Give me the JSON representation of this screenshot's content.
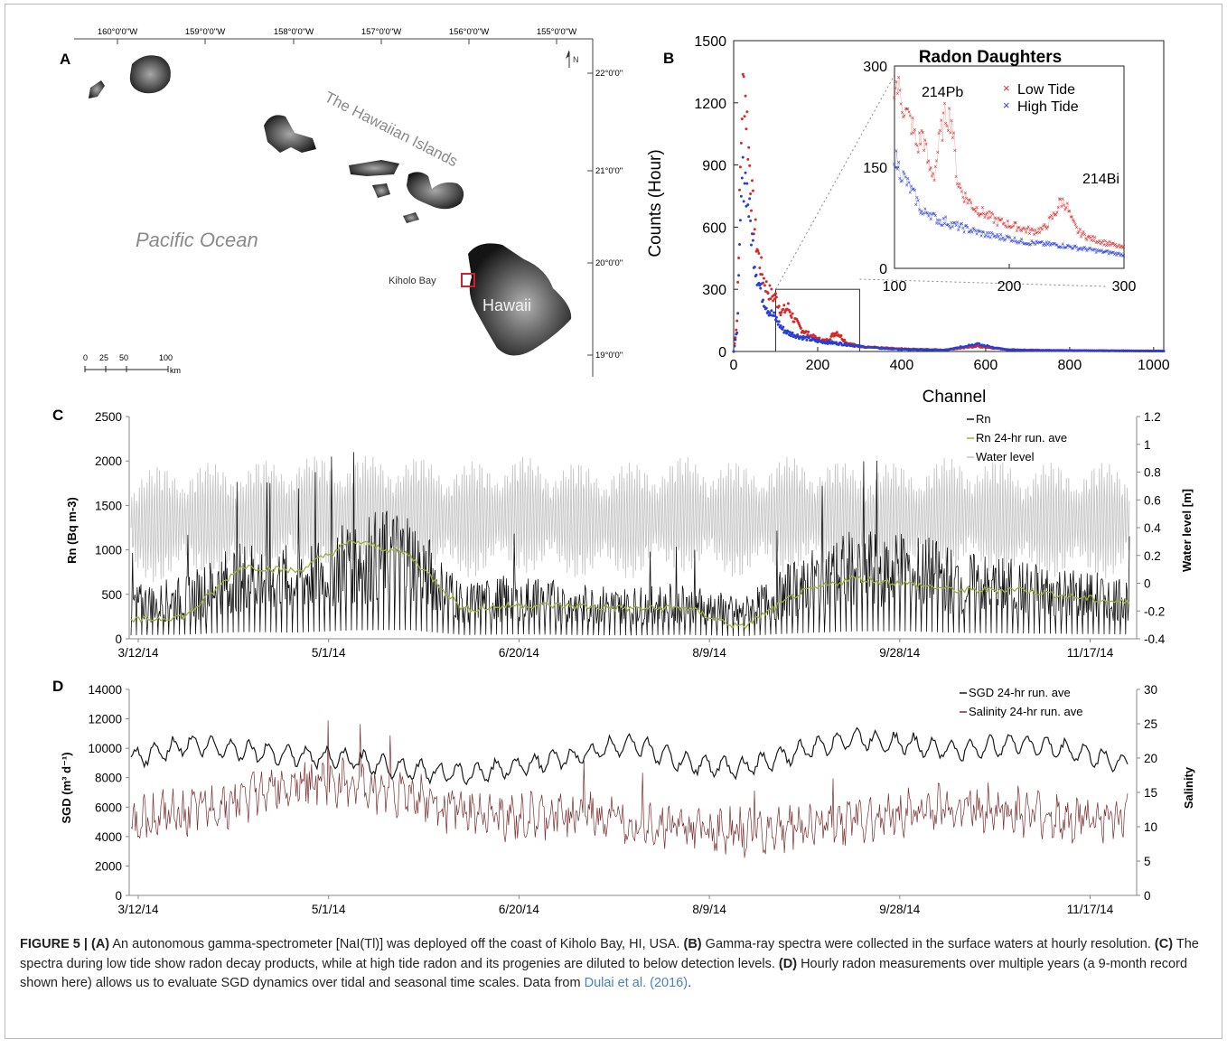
{
  "panel_a": {
    "letter": "A",
    "lon_ticks": [
      "160°0'0\"W",
      "159°0'0\"W",
      "158°0'0\"W",
      "157°0'0\"W",
      "156°0'0\"W",
      "155°0'0\"W"
    ],
    "lat_ticks": [
      "22°0'0\"N",
      "21°0'0\"N",
      "20°0'0\"N",
      "19°0'0\"N"
    ],
    "islands_label": "The Hawaiian Islands",
    "ocean_label": "Pacific Ocean",
    "bay_label": "Kiholo Bay",
    "big_island_label": "Hawaii",
    "north_label": "N",
    "scale_ticks": [
      "0",
      "25",
      "50",
      "100"
    ],
    "scale_unit": "km",
    "colors": {
      "land_dark": "#1c1c1c",
      "land_light": "#9a9a9a",
      "ocean_label": "#8a8a8a",
      "site_box": "#d0202a"
    }
  },
  "chart_data": [
    {
      "panel": "B",
      "type": "scatter",
      "ylabel": "Counts (Hour)",
      "xlabel": "Channel",
      "xlim": [
        0,
        1024
      ],
      "ylim": [
        0,
        1500
      ],
      "x_ticks": [
        "0",
        "200",
        "400",
        "600",
        "800",
        "1000"
      ],
      "y_ticks": [
        "0",
        "300",
        "600",
        "900",
        "1200",
        "1500"
      ],
      "zoom_box": {
        "x": [
          100,
          300
        ],
        "y": [
          0,
          300
        ]
      },
      "series": [
        {
          "name": "Low Tide",
          "color": "#d42a2a",
          "marker": "x",
          "x": [
            0,
            8,
            14,
            20,
            26,
            32,
            38,
            45,
            52,
            60,
            70,
            80,
            90,
            100,
            115,
            130,
            145,
            160,
            180,
            200,
            220,
            245,
            270,
            300,
            350,
            400,
            450,
            500,
            560,
            580,
            650,
            700,
            800,
            900,
            1000,
            1024
          ],
          "y": [
            0,
            150,
            700,
            1200,
            1300,
            1100,
            900,
            700,
            560,
            450,
            360,
            300,
            270,
            260,
            190,
            210,
            150,
            110,
            80,
            60,
            50,
            95,
            40,
            25,
            18,
            12,
            10,
            8,
            20,
            25,
            10,
            7,
            5,
            4,
            3,
            3
          ]
        },
        {
          "name": "High Tide",
          "color": "#2a3ed4",
          "marker": "x",
          "x": [
            0,
            8,
            14,
            20,
            26,
            32,
            38,
            45,
            52,
            60,
            70,
            80,
            90,
            100,
            115,
            130,
            145,
            160,
            180,
            200,
            220,
            245,
            270,
            300,
            350,
            400,
            450,
            500,
            560,
            580,
            650,
            700,
            800,
            900,
            1000,
            1024
          ],
          "y": [
            0,
            100,
            450,
            820,
            860,
            780,
            650,
            520,
            410,
            330,
            260,
            210,
            180,
            160,
            110,
            90,
            80,
            70,
            60,
            50,
            45,
            40,
            33,
            25,
            15,
            10,
            8,
            6,
            30,
            35,
            8,
            5,
            4,
            3,
            2,
            2
          ]
        }
      ],
      "inset": {
        "title": "Radon Daughters",
        "xlim": [
          100,
          300
        ],
        "ylim": [
          0,
          300
        ],
        "x_ticks": [
          "100",
          "200",
          "300"
        ],
        "y_ticks": [
          "0",
          "150",
          "300"
        ],
        "annotations": [
          "214Pb",
          "214Bi"
        ],
        "low_tide": {
          "x": [
            100,
            105,
            110,
            115,
            120,
            125,
            130,
            135,
            140,
            145,
            150,
            155,
            160,
            170,
            180,
            190,
            200,
            210,
            220,
            230,
            240,
            245,
            250,
            255,
            260,
            270,
            280,
            290,
            300
          ],
          "y": [
            280,
            260,
            230,
            215,
            180,
            200,
            150,
            140,
            195,
            230,
            220,
            130,
            110,
            90,
            80,
            70,
            65,
            60,
            55,
            58,
            80,
            100,
            95,
            70,
            55,
            45,
            40,
            35,
            30
          ]
        },
        "high_tide": {
          "x": [
            100,
            105,
            110,
            115,
            120,
            125,
            130,
            135,
            140,
            145,
            150,
            160,
            170,
            180,
            190,
            200,
            210,
            220,
            230,
            240,
            250,
            260,
            270,
            280,
            290,
            300
          ],
          "y": [
            170,
            145,
            130,
            115,
            100,
            80,
            85,
            75,
            70,
            70,
            65,
            60,
            55,
            50,
            47,
            45,
            40,
            38,
            36,
            35,
            33,
            30,
            28,
            25,
            23,
            20
          ]
        }
      }
    },
    {
      "panel": "C",
      "type": "line",
      "ylabel": "Rn (Bq m-3)",
      "y2label": "Water level [m]",
      "ylim": [
        0,
        2500
      ],
      "y2lim": [
        -0.4,
        1.2
      ],
      "x_ticks": [
        "3/12/14",
        "5/1/14",
        "6/20/14",
        "8/9/14",
        "9/28/14",
        "11/17/14"
      ],
      "y_ticks": [
        "0",
        "500",
        "1000",
        "1500",
        "2000",
        "2500"
      ],
      "y2_ticks": [
        "-0.4",
        "-0.2",
        "0",
        "0.2",
        "0.4",
        "0.6",
        "0.8",
        "1",
        "1.2"
      ],
      "x": [
        "3/12/14",
        "3/26/14",
        "4/9/14",
        "4/23/14",
        "5/7/14",
        "5/21/14",
        "6/4/14",
        "6/18/14",
        "7/2/14",
        "7/16/14",
        "7/30/14",
        "8/13/14",
        "8/27/14",
        "9/10/14",
        "9/24/14",
        "10/8/14",
        "10/22/14",
        "11/5/14",
        "11/19/14"
      ],
      "series": [
        {
          "name": "Rn",
          "color": "#111111",
          "y": [
            400,
            480,
            760,
            700,
            950,
            1000,
            420,
            500,
            420,
            390,
            440,
            300,
            620,
            830,
            840,
            660,
            600,
            540,
            480
          ]
        },
        {
          "name": "Rn 24-hr run. ave",
          "color": "#9bb040",
          "y": [
            200,
            260,
            820,
            760,
            1100,
            950,
            330,
            380,
            370,
            340,
            350,
            120,
            500,
            680,
            620,
            540,
            560,
            470,
            400
          ]
        },
        {
          "name": "Water level",
          "color": "#c6c6c6",
          "axis": "right",
          "y": [
            0.4,
            0.45,
            0.45,
            0.5,
            0.5,
            0.5,
            0.45,
            0.5,
            0.45,
            0.45,
            0.5,
            0.45,
            0.5,
            0.45,
            0.45,
            0.5,
            0.45,
            0.45,
            0.45
          ]
        }
      ]
    },
    {
      "panel": "D",
      "type": "line",
      "ylabel": "SGD (m³ d⁻¹)",
      "y2label": "Salinity",
      "ylim": [
        0,
        14000
      ],
      "y2lim": [
        0,
        30
      ],
      "x_ticks": [
        "3/12/14",
        "5/1/14",
        "6/20/14",
        "8/9/14",
        "9/28/14",
        "11/17/14"
      ],
      "y_ticks": [
        "0",
        "2000",
        "4000",
        "6000",
        "8000",
        "10000",
        "12000",
        "14000"
      ],
      "y2_ticks": [
        "0",
        "5",
        "10",
        "15",
        "20",
        "25",
        "30"
      ],
      "x": [
        "3/12/14",
        "3/26/14",
        "4/9/14",
        "4/23/14",
        "5/7/14",
        "5/21/14",
        "6/4/14",
        "6/18/14",
        "7/2/14",
        "7/16/14",
        "7/30/14",
        "8/13/14",
        "8/27/14",
        "9/10/14",
        "9/28/14",
        "10/8/14",
        "10/22/14",
        "11/5/14",
        "11/19/14"
      ],
      "series": [
        {
          "name": "SGD 24-hr run. ave",
          "color": "#1a1a1a",
          "y": [
            9200,
            10300,
            9900,
            9500,
            9200,
            8600,
            8200,
            8800,
            9400,
            10400,
            9000,
            8600,
            9700,
            10700,
            10300,
            9800,
            10400,
            9800,
            8900
          ]
        },
        {
          "name": "Salinity 24-hr run. ave",
          "color": "#7a2f2f",
          "axis": "right",
          "y": [
            11,
            12,
            14,
            17,
            16,
            15,
            12,
            11,
            12,
            11,
            10,
            9,
            10,
            11,
            12,
            13,
            12,
            11,
            11
          ]
        }
      ]
    }
  ],
  "panel_letters": {
    "b": "B",
    "c": "C",
    "d": "D"
  },
  "caption": {
    "label": "FIGURE 5 |",
    "part_a_label": "(A)",
    "part_a_text": "An autonomous gamma-spectrometer [NaI(Tl)] was deployed off the coast of Kiholo Bay, HI, USA.",
    "part_b_label": "(B)",
    "part_b_text": "Gamma-ray spectra were collected in the surface waters at hourly resolution.",
    "part_c_label": "(C)",
    "part_c_text": "The spectra during low tide show radon decay products, while at high tide radon and its progenies are diluted to below detection levels.",
    "part_d_label": "(D)",
    "part_d_text": "Hourly radon measurements over multiple years (a 9-month record shown here) allows us to evaluate SGD dynamics over tidal and seasonal time scales. Data from",
    "reference": "Dulai et al. (2016)",
    "end": "."
  }
}
